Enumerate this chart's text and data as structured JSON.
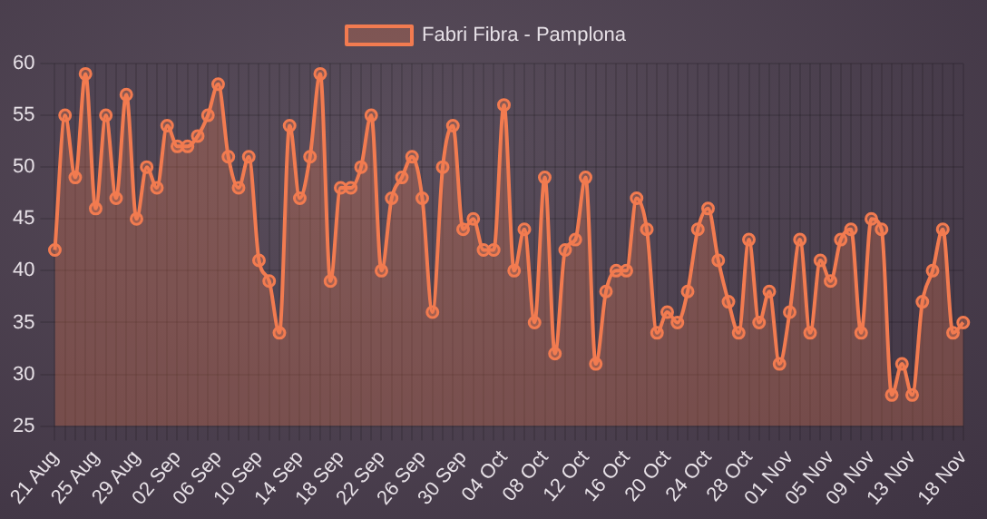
{
  "chart_data": {
    "type": "area",
    "categories": [
      "21 Aug",
      null,
      null,
      null,
      "25 Aug",
      null,
      null,
      null,
      "29 Aug",
      null,
      null,
      null,
      "02 Sep",
      null,
      null,
      null,
      "06 Sep",
      null,
      null,
      null,
      "10 Sep",
      null,
      null,
      null,
      "14 Sep",
      null,
      null,
      null,
      "18 Sep",
      null,
      null,
      null,
      "22 Sep",
      null,
      null,
      null,
      "26 Sep",
      null,
      null,
      null,
      "30 Sep",
      null,
      null,
      null,
      "04 Oct",
      null,
      null,
      null,
      "08 Oct",
      null,
      null,
      null,
      "12 Oct",
      null,
      null,
      null,
      "16 Oct",
      null,
      null,
      null,
      "20 Oct",
      null,
      null,
      null,
      "24 Oct",
      null,
      null,
      null,
      "28 Oct",
      null,
      null,
      null,
      "01 Nov",
      null,
      null,
      null,
      "05 Nov",
      null,
      null,
      null,
      "09 Nov",
      null,
      null,
      null,
      "13 Nov",
      null,
      null,
      null,
      null,
      "18 Nov"
    ],
    "series": [
      {
        "name": "Fabri Fibra - Pamplona",
        "color": "#f27b50",
        "values": [
          42,
          55,
          49,
          59,
          46,
          55,
          47,
          57,
          45,
          50,
          48,
          54,
          52,
          52,
          53,
          55,
          58,
          51,
          48,
          51,
          41,
          39,
          34,
          54,
          47,
          51,
          59,
          39,
          48,
          48,
          50,
          55,
          40,
          47,
          49,
          51,
          47,
          36,
          50,
          54,
          44,
          45,
          42,
          42,
          56,
          40,
          44,
          35,
          49,
          32,
          42,
          43,
          49,
          31,
          38,
          40,
          40,
          47,
          44,
          34,
          36,
          35,
          38,
          44,
          46,
          41,
          37,
          34,
          43,
          35,
          38,
          31,
          36,
          43,
          34,
          41,
          39,
          43,
          44,
          34,
          45,
          44,
          28,
          31,
          28,
          37,
          40,
          44,
          34,
          35
        ]
      }
    ],
    "ylim": [
      25,
      60
    ],
    "yticks": [
      25,
      30,
      35,
      40,
      45,
      50,
      55,
      60
    ],
    "grid": true,
    "legend": "top",
    "marker": "circle",
    "line_style": "solid"
  }
}
